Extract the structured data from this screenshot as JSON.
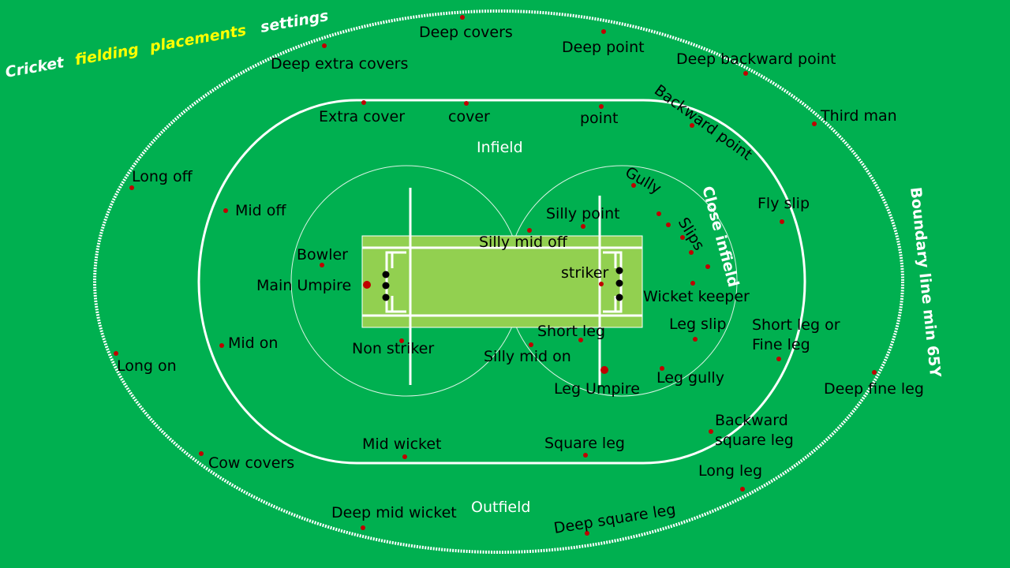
{
  "title": {
    "parts": [
      {
        "text": "Cricket",
        "color": "#ffffff"
      },
      {
        "text": "fielding",
        "color": "#ffff00"
      },
      {
        "text": "placements",
        "color": "#ffff00"
      },
      {
        "text": "settings",
        "color": "#ffffff"
      }
    ]
  },
  "zones": {
    "infield": "Infield",
    "outfield": "Outfield",
    "close_infield": "Close infield",
    "boundary": "Boundary line min 65Y"
  },
  "colors": {
    "ground": "#00b050",
    "pitch": "#92d050",
    "lines": "#ffffff",
    "fielder_dot": "#c00000",
    "player_dot": "#000000",
    "text": "#000000"
  },
  "positions": [
    "Deep covers",
    "Deep point",
    "Deep extra covers",
    "Deep backward point",
    "Extra cover",
    "cover",
    "point",
    "Backward point",
    "Third man",
    "Infield",
    "Long off",
    "Gully",
    "Fly slip",
    "Mid off",
    "Silly point",
    "Slips",
    "Bowler",
    "Silly mid off",
    "striker",
    "Main Umpire",
    "Wicket keeper",
    "Leg slip",
    "Short leg",
    "Short leg or",
    "Fine leg",
    "Mid on",
    "Non striker",
    "Silly mid on",
    "Long on",
    "Leg gully",
    "Leg Umpire",
    "Deep fine leg",
    "Backward",
    "square leg",
    "Mid wicket",
    "Square leg",
    "Cow covers",
    "Long leg",
    "Deep mid wicket",
    "Deep square leg"
  ]
}
